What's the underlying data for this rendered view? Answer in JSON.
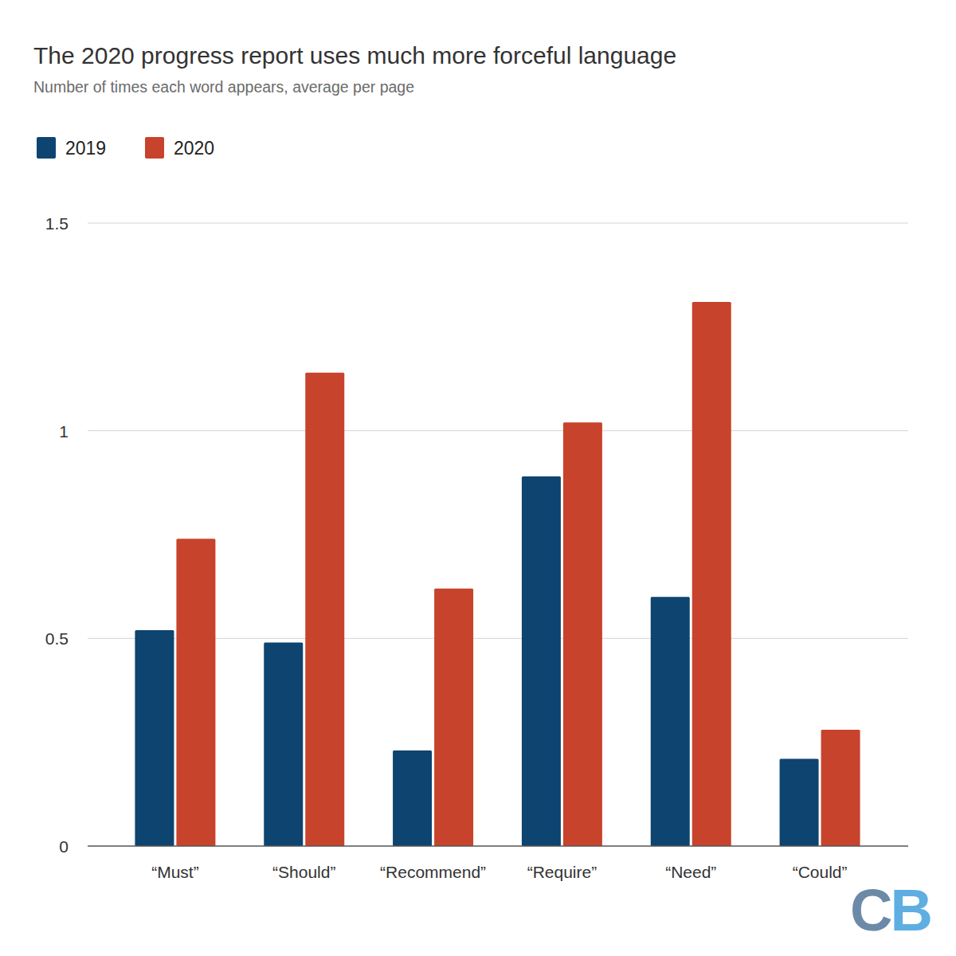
{
  "chart_data": {
    "type": "bar",
    "title": "The 2020 progress report uses much more forceful language",
    "subtitle": "Number of times each word appears, average per page",
    "categories": [
      "“Must”",
      "“Should”",
      "“Recommend”",
      "“Require”",
      "“Need”",
      "“Could”"
    ],
    "series": [
      {
        "name": "2019",
        "color": "#0d4470",
        "values": [
          0.52,
          0.49,
          0.23,
          0.89,
          0.6,
          0.21
        ]
      },
      {
        "name": "2020",
        "color": "#c8432c",
        "values": [
          0.74,
          1.14,
          0.62,
          1.02,
          1.31,
          0.28
        ]
      }
    ],
    "ylim": [
      0,
      1.5
    ],
    "yticks": [
      0,
      0.5,
      1,
      1.5
    ],
    "grid": true,
    "legend": "top-left",
    "annotations": [
      "CB"
    ]
  }
}
